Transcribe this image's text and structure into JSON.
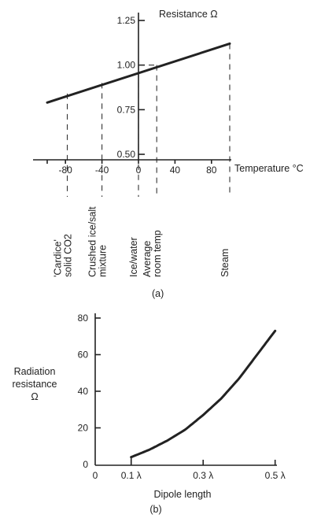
{
  "chart_data": [
    {
      "type": "line",
      "panel_label": "(a)",
      "xlabel": "Temperature °C",
      "ylabel": "Resistance Ω",
      "x_ticks": [
        "-80",
        "-40",
        "0",
        "40",
        "80"
      ],
      "y_ticks": [
        "0.50",
        "0.75",
        "1.00",
        "1.25"
      ],
      "xlim": [
        -100,
        100
      ],
      "ylim": [
        0.5,
        1.25
      ],
      "series": [
        {
          "x": [
            -100,
            100
          ],
          "y": [
            0.79,
            1.12
          ]
        }
      ],
      "annotations": [
        {
          "x": -78,
          "y": 0.84,
          "lines": [
            "'Cardice'",
            "solid CO2"
          ]
        },
        {
          "x": -40,
          "y": 0.9,
          "lines": [
            "Crushed ice/salt",
            "mixture"
          ]
        },
        {
          "x": 0,
          "y": 0.96,
          "lines": [
            "Ice/water"
          ]
        },
        {
          "x": 20,
          "y": 1.0,
          "lines": [
            "Average",
            "room temp"
          ]
        },
        {
          "x": 100,
          "y": 1.12,
          "lines": [
            "Steam"
          ]
        }
      ]
    },
    {
      "type": "line",
      "panel_label": "(b)",
      "xlabel": "Dipole length",
      "ylabel": "Radiation resistance Ω",
      "ylabel_lines": [
        "Radiation",
        "resistance",
        "Ω"
      ],
      "x_ticks": [
        "0",
        "0.1 λ",
        "0.3 λ",
        "0.5 λ"
      ],
      "x_tick_values": [
        0,
        0.1,
        0.3,
        0.5
      ],
      "y_ticks": [
        "0",
        "20",
        "40",
        "60",
        "80"
      ],
      "xlim": [
        0,
        0.5
      ],
      "ylim": [
        0,
        80
      ],
      "series": [
        {
          "x": [
            0.1,
            0.15,
            0.2,
            0.25,
            0.3,
            0.35,
            0.4,
            0.45,
            0.5
          ],
          "y": [
            4,
            8,
            13,
            19,
            27,
            36,
            47,
            60,
            73
          ]
        }
      ]
    }
  ]
}
